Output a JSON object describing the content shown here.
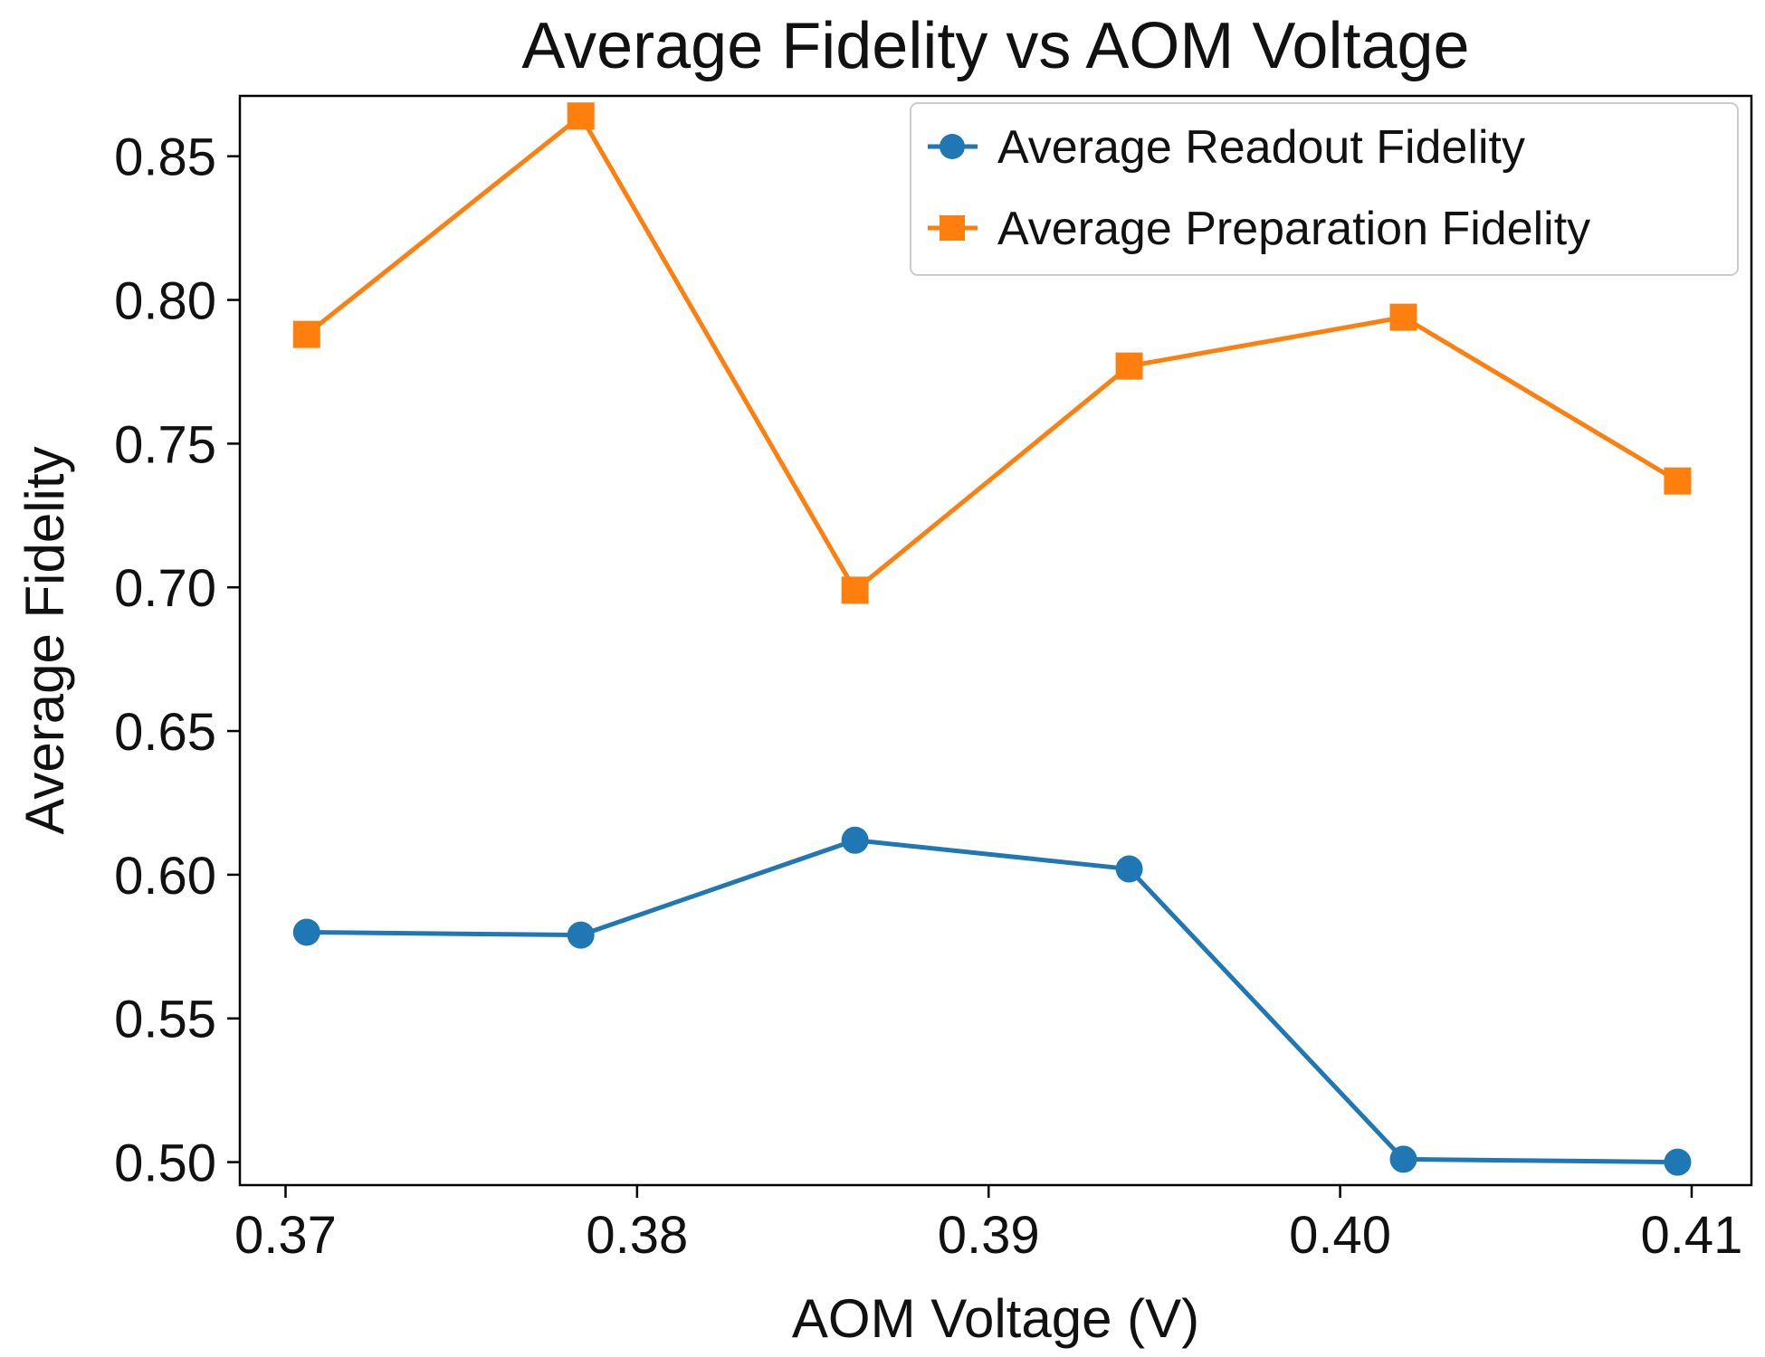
{
  "chart_data": {
    "type": "line",
    "title": "Average Fidelity vs AOM Voltage",
    "xlabel": "AOM Voltage (V)",
    "ylabel": "Average Fidelity",
    "xlim": [
      0.3687,
      0.4117
    ],
    "ylim": [
      0.492,
      0.871
    ],
    "xticks": [
      0.37,
      0.38,
      0.39,
      0.4,
      0.41
    ],
    "xtick_labels": [
      "0.37",
      "0.38",
      "0.39",
      "0.40",
      "0.41"
    ],
    "yticks": [
      0.5,
      0.55,
      0.6,
      0.65,
      0.7,
      0.75,
      0.8,
      0.85
    ],
    "ytick_labels": [
      "0.50",
      "0.55",
      "0.60",
      "0.65",
      "0.70",
      "0.75",
      "0.80",
      "0.85"
    ],
    "grid": false,
    "legend_position": "top-right",
    "x": [
      0.3706,
      0.3784,
      0.3862,
      0.394,
      0.4018,
      0.4096
    ],
    "series": [
      {
        "name": "Average Readout Fidelity",
        "color": "#1f77b4",
        "marker": "circle",
        "values": [
          0.58,
          0.579,
          0.612,
          0.602,
          0.501,
          0.5
        ]
      },
      {
        "name": "Average Preparation Fidelity",
        "color": "#ff7f0e",
        "marker": "square",
        "values": [
          0.788,
          0.864,
          0.699,
          0.777,
          0.794,
          0.737
        ]
      }
    ]
  }
}
